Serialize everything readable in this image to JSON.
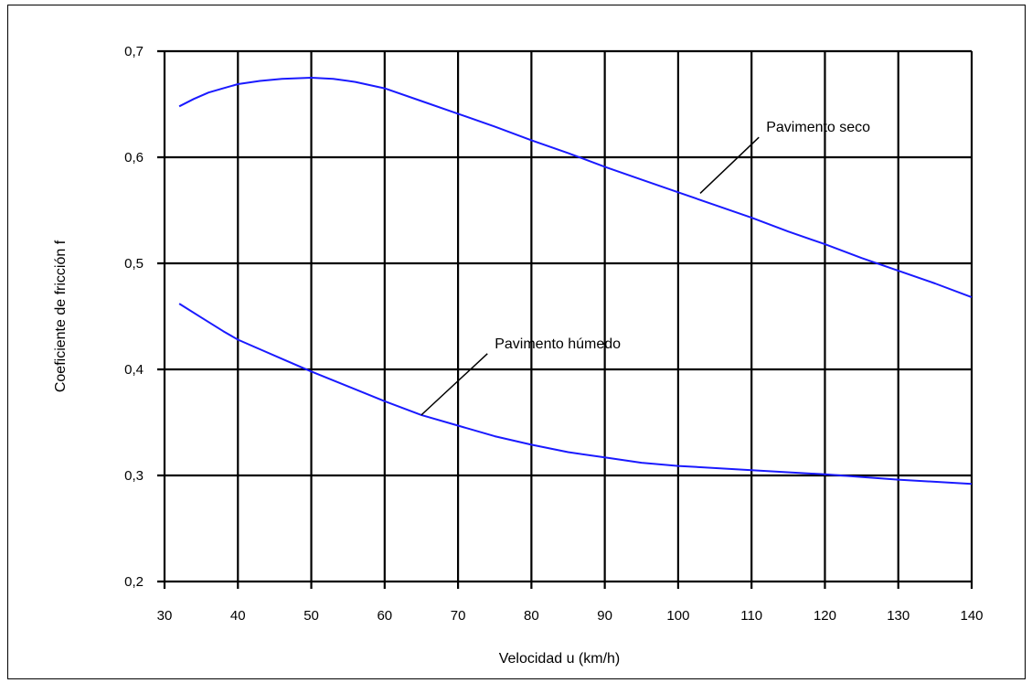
{
  "chart_data": {
    "type": "line",
    "title": "",
    "xlabel": "Velocidad u (km/h)",
    "ylabel": "Coeficiente de fricción f",
    "xlim": [
      30,
      140
    ],
    "ylim": [
      0.2,
      0.7
    ],
    "x_ticks": [
      30,
      40,
      50,
      60,
      70,
      80,
      90,
      100,
      110,
      120,
      130,
      140
    ],
    "y_ticks": [
      0.2,
      0.3,
      0.4,
      0.5,
      0.6,
      0.7
    ],
    "x_tick_labels": [
      "30",
      "40",
      "50",
      "60",
      "70",
      "80",
      "90",
      "100",
      "110",
      "120",
      "130",
      "140"
    ],
    "y_tick_labels": [
      "0,2",
      "0,3",
      "0,4",
      "0,5",
      "0,6",
      "0,7"
    ],
    "grid": true,
    "series": [
      {
        "name": "Pavimento seco",
        "color": "#1a1aff",
        "x": [
          32,
          34,
          36,
          38,
          40,
          43,
          46,
          50,
          53,
          56,
          60,
          65,
          70,
          75,
          80,
          85,
          90,
          95,
          100,
          105,
          110,
          115,
          120,
          125,
          130,
          135,
          140
        ],
        "y": [
          0.648,
          0.655,
          0.661,
          0.665,
          0.669,
          0.672,
          0.674,
          0.675,
          0.674,
          0.671,
          0.665,
          0.653,
          0.641,
          0.629,
          0.616,
          0.604,
          0.591,
          0.579,
          0.567,
          0.555,
          0.543,
          0.53,
          0.518,
          0.505,
          0.493,
          0.481,
          0.468
        ]
      },
      {
        "name": "Pavimento húmedo",
        "color": "#1a1aff",
        "x": [
          32,
          35,
          38,
          40,
          43,
          46,
          50,
          55,
          60,
          65,
          70,
          75,
          80,
          85,
          90,
          95,
          100,
          110,
          120,
          130,
          140
        ],
        "y": [
          0.462,
          0.449,
          0.436,
          0.428,
          0.419,
          0.41,
          0.398,
          0.384,
          0.37,
          0.357,
          0.347,
          0.337,
          0.329,
          0.322,
          0.317,
          0.312,
          0.309,
          0.305,
          0.301,
          0.296,
          0.292
        ]
      }
    ],
    "annotations": [
      {
        "text": "Pavimento seco",
        "point_x": 103,
        "point_y": 0.566,
        "text_x": 112,
        "text_y": 0.624
      },
      {
        "text": "Pavimento húmedo",
        "point_x": 65,
        "point_y": 0.357,
        "text_x": 75,
        "text_y": 0.42
      }
    ]
  }
}
